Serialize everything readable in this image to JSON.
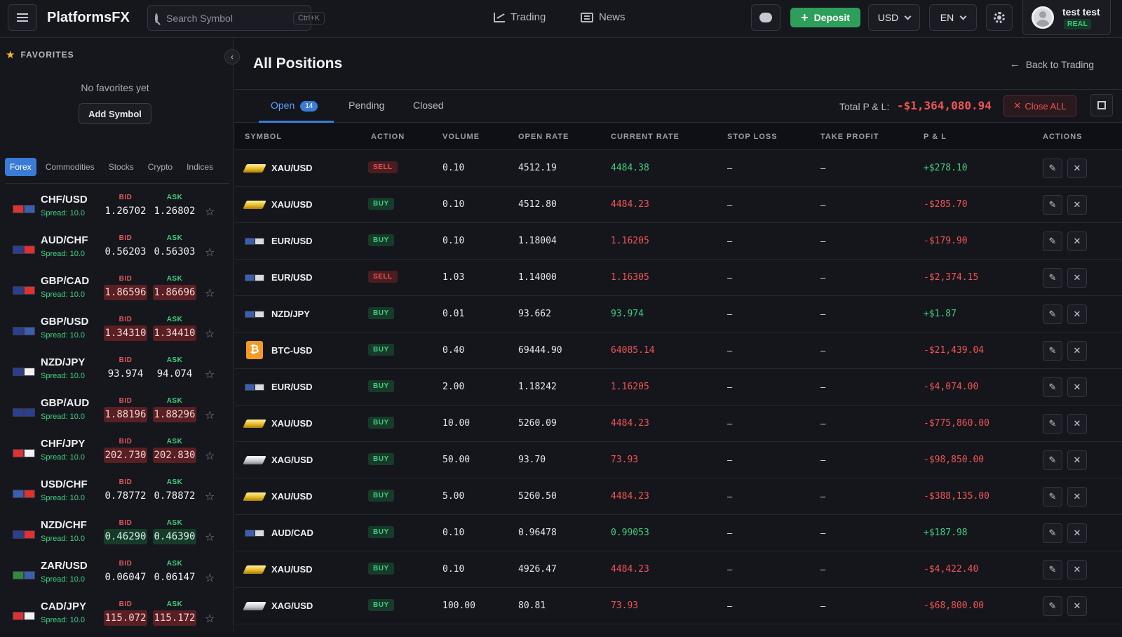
{
  "header": {
    "brand": "PlatformsFX",
    "search_placeholder": "Search Symbol",
    "search_shortcut": "Ctrl+K",
    "nav": [
      {
        "label": "Trading",
        "icon": "chart-line-icon"
      },
      {
        "label": "News",
        "icon": "newspaper-icon"
      }
    ],
    "deposit_label": "Deposit",
    "currency": "USD",
    "language": "EN",
    "user_name": "test test",
    "account_type": "REAL"
  },
  "sidebar": {
    "favorites_title": "FAVORITES",
    "no_favorites": "No favorites yet",
    "add_symbol": "Add Symbol",
    "categories": [
      "Forex",
      "Commodities",
      "Stocks",
      "Crypto",
      "Indices"
    ],
    "active_category": "Forex",
    "bid_label": "BID",
    "ask_label": "ASK",
    "pairs": [
      {
        "name": "CHF/USD",
        "spread": "Spread: 10.0",
        "bid": "1.26702",
        "ask": "1.26802",
        "trend": "none",
        "flags": [
          "#e03030",
          "#3a5fb0"
        ]
      },
      {
        "name": "AUD/CHF",
        "spread": "Spread: 10.0",
        "bid": "0.56203",
        "ask": "0.56303",
        "trend": "none",
        "flags": [
          "#2b3f8f",
          "#e03030"
        ]
      },
      {
        "name": "GBP/CAD",
        "spread": "Spread: 10.0",
        "bid": "1.86596",
        "ask": "1.86696",
        "trend": "down",
        "flags": [
          "#2b3f8f",
          "#e03030"
        ]
      },
      {
        "name": "GBP/USD",
        "spread": "Spread: 10.0",
        "bid": "1.34310",
        "ask": "1.34410",
        "trend": "down",
        "flags": [
          "#2b3f8f",
          "#3a5fb0"
        ]
      },
      {
        "name": "NZD/JPY",
        "spread": "Spread: 10.0",
        "bid": "93.974",
        "ask": "94.074",
        "trend": "none",
        "flags": [
          "#2b3f8f",
          "#f2f2f2"
        ]
      },
      {
        "name": "GBP/AUD",
        "spread": "Spread: 10.0",
        "bid": "1.88196",
        "ask": "1.88296",
        "trend": "down",
        "flags": [
          "#2b3f8f",
          "#2b3f8f"
        ]
      },
      {
        "name": "CHF/JPY",
        "spread": "Spread: 10.0",
        "bid": "202.730",
        "ask": "202.830",
        "trend": "down",
        "flags": [
          "#e03030",
          "#f2f2f2"
        ]
      },
      {
        "name": "USD/CHF",
        "spread": "Spread: 10.0",
        "bid": "0.78772",
        "ask": "0.78872",
        "trend": "none",
        "flags": [
          "#3a5fb0",
          "#e03030"
        ]
      },
      {
        "name": "NZD/CHF",
        "spread": "Spread: 10.0",
        "bid": "0.46290",
        "ask": "0.46390",
        "trend": "up",
        "flags": [
          "#2b3f8f",
          "#e03030"
        ]
      },
      {
        "name": "ZAR/USD",
        "spread": "Spread: 10.0",
        "bid": "0.06047",
        "ask": "0.06147",
        "trend": "none",
        "flags": [
          "#2e8b3a",
          "#3a5fb0"
        ]
      },
      {
        "name": "CAD/JPY",
        "spread": "Spread: 10.0",
        "bid": "115.072",
        "ask": "115.172",
        "trend": "down",
        "flags": [
          "#e03030",
          "#f2f2f2"
        ]
      }
    ]
  },
  "main": {
    "title": "All Positions",
    "back_label": "Back to Trading",
    "tabs": [
      {
        "label": "Open",
        "count": "14"
      },
      {
        "label": "Pending"
      },
      {
        "label": "Closed"
      }
    ],
    "total_pl_label": "Total P & L:",
    "total_pl_value": "-$1,364,080.94",
    "close_all_label": "Close ALL",
    "columns": [
      "SYMBOL",
      "ACTION",
      "VOLUME",
      "OPEN RATE",
      "CURRENT RATE",
      "STOP LOSS",
      "TAKE PROFIT",
      "P & L",
      "ACTIONS"
    ],
    "positions": [
      {
        "symbol": "XAU/USD",
        "icon": "gold",
        "action": "SELL",
        "volume": "0.10",
        "open_rate": "4512.19",
        "current_rate": "4484.38",
        "rate_dir": "pos",
        "stop_loss": "–",
        "take_profit": "–",
        "pl": "+$278.10",
        "pl_dir": "pos"
      },
      {
        "symbol": "XAU/USD",
        "icon": "gold",
        "action": "BUY",
        "volume": "0.10",
        "open_rate": "4512.80",
        "current_rate": "4484.23",
        "rate_dir": "neg",
        "stop_loss": "–",
        "take_profit": "–",
        "pl": "-$285.70",
        "pl_dir": "neg"
      },
      {
        "symbol": "EUR/USD",
        "icon": "flags",
        "action": "BUY",
        "volume": "0.10",
        "open_rate": "1.18004",
        "current_rate": "1.16205",
        "rate_dir": "neg",
        "stop_loss": "–",
        "take_profit": "–",
        "pl": "-$179.90",
        "pl_dir": "neg"
      },
      {
        "symbol": "EUR/USD",
        "icon": "flags",
        "action": "SELL",
        "volume": "1.03",
        "open_rate": "1.14000",
        "current_rate": "1.16305",
        "rate_dir": "neg",
        "stop_loss": "–",
        "take_profit": "–",
        "pl": "-$2,374.15",
        "pl_dir": "neg"
      },
      {
        "symbol": "NZD/JPY",
        "icon": "flags",
        "action": "BUY",
        "volume": "0.01",
        "open_rate": "93.662",
        "current_rate": "93.974",
        "rate_dir": "pos",
        "stop_loss": "–",
        "take_profit": "–",
        "pl": "+$1.87",
        "pl_dir": "pos"
      },
      {
        "symbol": "BTC-USD",
        "icon": "btc",
        "action": "BUY",
        "volume": "0.40",
        "open_rate": "69444.90",
        "current_rate": "64085.14",
        "rate_dir": "neg",
        "stop_loss": "–",
        "take_profit": "–",
        "pl": "-$21,439.04",
        "pl_dir": "neg"
      },
      {
        "symbol": "EUR/USD",
        "icon": "flags",
        "action": "BUY",
        "volume": "2.00",
        "open_rate": "1.18242",
        "current_rate": "1.16205",
        "rate_dir": "neg",
        "stop_loss": "–",
        "take_profit": "–",
        "pl": "-$4,074.00",
        "pl_dir": "neg"
      },
      {
        "symbol": "XAU/USD",
        "icon": "gold",
        "action": "BUY",
        "volume": "10.00",
        "open_rate": "5260.09",
        "current_rate": "4484.23",
        "rate_dir": "neg",
        "stop_loss": "–",
        "take_profit": "–",
        "pl": "-$775,860.00",
        "pl_dir": "neg"
      },
      {
        "symbol": "XAG/USD",
        "icon": "silver",
        "action": "BUY",
        "volume": "50.00",
        "open_rate": "93.70",
        "current_rate": "73.93",
        "rate_dir": "neg",
        "stop_loss": "–",
        "take_profit": "–",
        "pl": "-$98,850.00",
        "pl_dir": "neg"
      },
      {
        "symbol": "XAU/USD",
        "icon": "gold",
        "action": "BUY",
        "volume": "5.00",
        "open_rate": "5260.50",
        "current_rate": "4484.23",
        "rate_dir": "neg",
        "stop_loss": "–",
        "take_profit": "–",
        "pl": "-$388,135.00",
        "pl_dir": "neg"
      },
      {
        "symbol": "AUD/CAD",
        "icon": "flags",
        "action": "BUY",
        "volume": "0.10",
        "open_rate": "0.96478",
        "current_rate": "0.99053",
        "rate_dir": "pos",
        "stop_loss": "–",
        "take_profit": "–",
        "pl": "+$187.98",
        "pl_dir": "pos"
      },
      {
        "symbol": "XAU/USD",
        "icon": "gold",
        "action": "BUY",
        "volume": "0.10",
        "open_rate": "4926.47",
        "current_rate": "4484.23",
        "rate_dir": "neg",
        "stop_loss": "–",
        "take_profit": "–",
        "pl": "-$4,422.40",
        "pl_dir": "neg"
      },
      {
        "symbol": "XAG/USD",
        "icon": "silver",
        "action": "BUY",
        "volume": "100.00",
        "open_rate": "80.81",
        "current_rate": "73.93",
        "rate_dir": "neg",
        "stop_loss": "–",
        "take_profit": "–",
        "pl": "-$68,800.00",
        "pl_dir": "neg"
      }
    ]
  }
}
